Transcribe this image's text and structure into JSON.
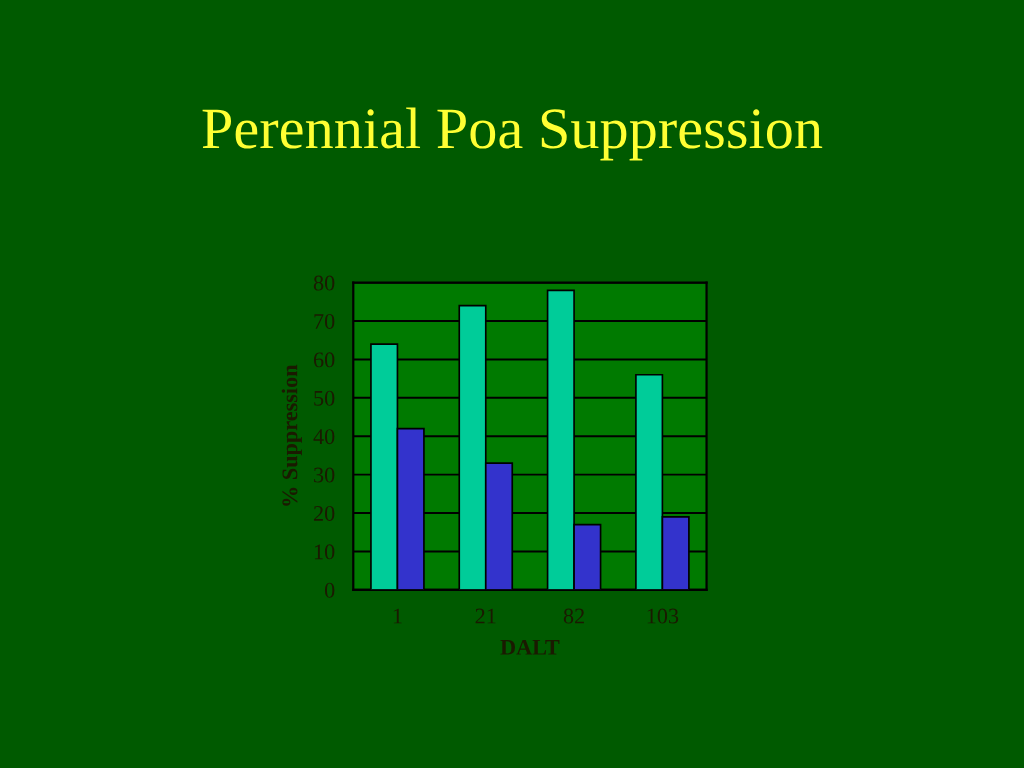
{
  "chart_data": {
    "type": "bar",
    "title": "Perennial Poa Suppression",
    "xlabel": "DALT",
    "ylabel": "% Suppression",
    "categories": [
      "1",
      "21",
      "82",
      "103"
    ],
    "series": [
      {
        "color": "#00cc99",
        "values": [
          64,
          74,
          78,
          56
        ]
      },
      {
        "color": "#3333cc",
        "values": [
          42,
          33,
          17,
          19
        ]
      }
    ],
    "ylim": [
      0,
      80
    ],
    "yticks": [
      0,
      10,
      20,
      30,
      40,
      50,
      60,
      70,
      80
    ],
    "grid": "y"
  }
}
